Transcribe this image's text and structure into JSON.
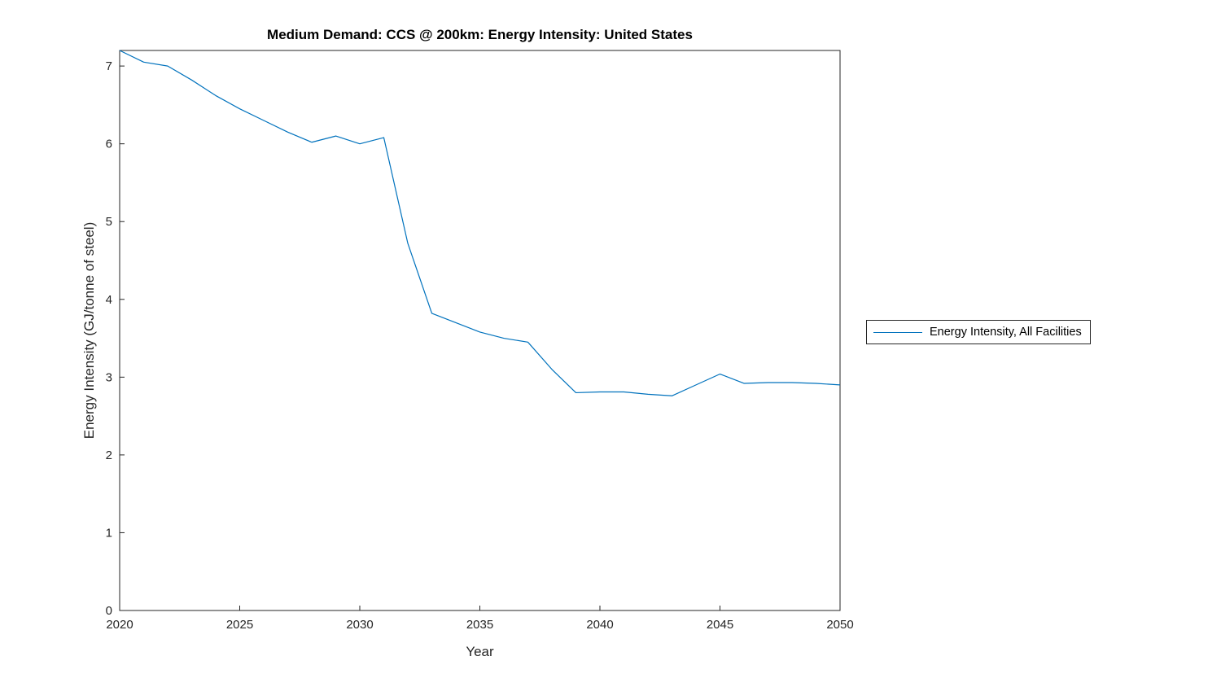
{
  "chart_data": {
    "type": "line",
    "title": "Medium Demand: CCS @ 200km: Energy Intensity: United States",
    "xlabel": "Year",
    "ylabel": "Energy Intensity (GJ/tonne of steel)",
    "xlim": [
      2020,
      2050
    ],
    "ylim": [
      0,
      7.2
    ],
    "xticks": [
      2020,
      2025,
      2030,
      2035,
      2040,
      2045,
      2050
    ],
    "yticks": [
      0,
      1,
      2,
      3,
      4,
      5,
      6,
      7
    ],
    "grid": false,
    "legend_position": "right-outside",
    "line_color": "#0072BD",
    "axis_color": "#262626",
    "x": [
      2020,
      2021,
      2022,
      2023,
      2024,
      2025,
      2026,
      2027,
      2028,
      2029,
      2030,
      2031,
      2032,
      2033,
      2034,
      2035,
      2036,
      2037,
      2038,
      2039,
      2040,
      2041,
      2042,
      2043,
      2044,
      2045,
      2046,
      2047,
      2048,
      2049,
      2050
    ],
    "series": [
      {
        "name": "Energy Intensity, All Facilities",
        "values": [
          7.2,
          7.05,
          7.0,
          6.82,
          6.62,
          6.45,
          6.3,
          6.15,
          6.02,
          6.1,
          6.0,
          6.08,
          4.72,
          3.82,
          3.7,
          3.58,
          3.5,
          3.45,
          3.1,
          2.8,
          2.81,
          2.81,
          2.78,
          2.76,
          2.9,
          3.04,
          2.92,
          2.93,
          2.93,
          2.92,
          2.9
        ]
      }
    ]
  }
}
